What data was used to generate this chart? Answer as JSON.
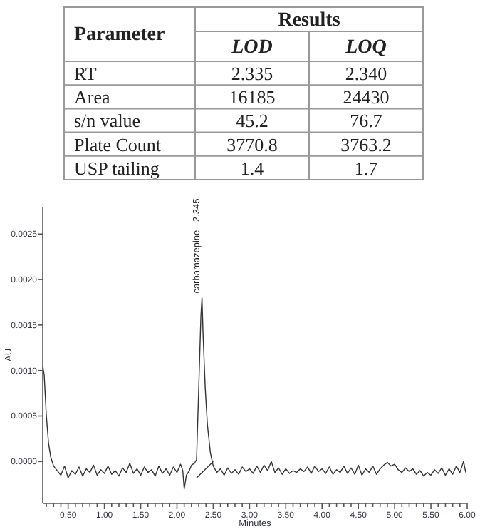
{
  "chart_data": [
    {
      "type": "other",
      "annotations": [
        "Parameter",
        "Results"
      ],
      "categories": [
        "RT",
        "Area",
        "s/n value",
        "Plate Count",
        "USP tailing"
      ],
      "series": [
        {
          "name": "LOD",
          "values": [
            2.335,
            16185,
            45.2,
            3770.8,
            1.4
          ],
          "value_labels": [
            "2.335",
            "16185",
            "45.2",
            "3770.8",
            "1.4"
          ]
        },
        {
          "name": "LOQ",
          "values": [
            2.34,
            24430,
            76.7,
            3763.2,
            1.7
          ],
          "value_labels": [
            "2.340",
            "24430",
            "76.7",
            "3763.2",
            "1.7"
          ]
        }
      ]
    },
    {
      "type": "line",
      "xlabel": "Minutes",
      "ylabel": "AU",
      "xlim": [
        0.15,
        6.0
      ],
      "ylim": [
        -0.00046,
        0.0028
      ],
      "line_style": "solid",
      "xticks": [
        {
          "value": 0.2,
          "label": null
        },
        {
          "value": 0.3,
          "label": null
        },
        {
          "value": 0.4,
          "label": null
        },
        {
          "value": 0.5,
          "label": "0.50"
        },
        {
          "value": 0.6,
          "label": null
        },
        {
          "value": 0.7,
          "label": null
        },
        {
          "value": 0.8,
          "label": null
        },
        {
          "value": 0.9,
          "label": null
        },
        {
          "value": 1.0,
          "label": "1.00"
        },
        {
          "value": 1.1,
          "label": null
        },
        {
          "value": 1.2,
          "label": null
        },
        {
          "value": 1.3,
          "label": null
        },
        {
          "value": 1.4,
          "label": null
        },
        {
          "value": 1.5,
          "label": "1.50"
        },
        {
          "value": 1.6,
          "label": null
        },
        {
          "value": 1.7,
          "label": null
        },
        {
          "value": 1.8,
          "label": null
        },
        {
          "value": 1.9,
          "label": null
        },
        {
          "value": 2.0,
          "label": "2.00"
        },
        {
          "value": 2.1,
          "label": null
        },
        {
          "value": 2.2,
          "label": null
        },
        {
          "value": 2.3,
          "label": null
        },
        {
          "value": 2.4,
          "label": null
        },
        {
          "value": 2.5,
          "label": "2.50"
        },
        {
          "value": 2.6,
          "label": null
        },
        {
          "value": 2.7,
          "label": null
        },
        {
          "value": 2.8,
          "label": null
        },
        {
          "value": 2.9,
          "label": null
        },
        {
          "value": 3.0,
          "label": "3.00"
        },
        {
          "value": 3.1,
          "label": null
        },
        {
          "value": 3.2,
          "label": null
        },
        {
          "value": 3.3,
          "label": null
        },
        {
          "value": 3.4,
          "label": null
        },
        {
          "value": 3.5,
          "label": "3.50"
        },
        {
          "value": 3.6,
          "label": null
        },
        {
          "value": 3.7,
          "label": null
        },
        {
          "value": 3.8,
          "label": null
        },
        {
          "value": 3.9,
          "label": null
        },
        {
          "value": 4.0,
          "label": "4.00"
        },
        {
          "value": 4.1,
          "label": null
        },
        {
          "value": 4.2,
          "label": null
        },
        {
          "value": 4.3,
          "label": null
        },
        {
          "value": 4.4,
          "label": null
        },
        {
          "value": 4.5,
          "label": "4.50"
        },
        {
          "value": 4.6,
          "label": null
        },
        {
          "value": 4.7,
          "label": null
        },
        {
          "value": 4.8,
          "label": null
        },
        {
          "value": 4.9,
          "label": null
        },
        {
          "value": 5.0,
          "label": "5.00"
        },
        {
          "value": 5.1,
          "label": null
        },
        {
          "value": 5.2,
          "label": null
        },
        {
          "value": 5.3,
          "label": null
        },
        {
          "value": 5.4,
          "label": null
        },
        {
          "value": 5.5,
          "label": "5.50"
        },
        {
          "value": 5.6,
          "label": null
        },
        {
          "value": 5.7,
          "label": null
        },
        {
          "value": 5.8,
          "label": null
        },
        {
          "value": 5.9,
          "label": null
        },
        {
          "value": 6.0,
          "label": "6.00"
        }
      ],
      "yticks": [
        {
          "value": 0,
          "label": "0.0000"
        },
        {
          "value": 0.0005,
          "label": "0.0005"
        },
        {
          "value": 0.001,
          "label": "0.0010"
        },
        {
          "value": 0.0015,
          "label": "0.0015"
        },
        {
          "value": 0.002,
          "label": "0.0020"
        },
        {
          "value": 0.0025,
          "label": "0.0025"
        }
      ],
      "annotations": [
        {
          "text": "carbamazepine - 2.345",
          "x": 2.345,
          "y": 0.0018
        }
      ],
      "series": [
        {
          "color": "#333333",
          "x": [
            0.15,
            0.17,
            0.2,
            0.23,
            0.26,
            0.3,
            0.35,
            0.4,
            0.45,
            0.5,
            0.55,
            0.6,
            0.65,
            0.7,
            0.75,
            0.8,
            0.85,
            0.9,
            0.95,
            1.0,
            1.05,
            1.1,
            1.15,
            1.2,
            1.25,
            1.3,
            1.35,
            1.4,
            1.45,
            1.5,
            1.55,
            1.6,
            1.65,
            1.7,
            1.75,
            1.8,
            1.85,
            1.9,
            1.95,
            2.0,
            2.05,
            2.08,
            2.1,
            2.13,
            2.17,
            2.2,
            2.24,
            2.27,
            2.3,
            2.33,
            2.345,
            2.36,
            2.39,
            2.42,
            2.46,
            2.5,
            2.55,
            2.6,
            2.65,
            2.7,
            2.75,
            2.8,
            2.85,
            2.9,
            2.95,
            3.0,
            3.05,
            3.1,
            3.15,
            3.2,
            3.25,
            3.3,
            3.35,
            3.4,
            3.45,
            3.5,
            3.55,
            3.6,
            3.65,
            3.7,
            3.75,
            3.8,
            3.85,
            3.9,
            3.95,
            4.0,
            4.05,
            4.1,
            4.15,
            4.2,
            4.25,
            4.3,
            4.35,
            4.4,
            4.45,
            4.5,
            4.55,
            4.6,
            4.65,
            4.7,
            4.75,
            4.8,
            4.85,
            4.9,
            4.95,
            5.0,
            5.05,
            5.1,
            5.15,
            5.2,
            5.25,
            5.3,
            5.35,
            5.4,
            5.45,
            5.5,
            5.55,
            5.6,
            5.65,
            5.7,
            5.75,
            5.8,
            5.85,
            5.9,
            5.95,
            5.98
          ],
          "values": [
            0.00105,
            0.00095,
            0.0005,
            0.0002,
            5e-05,
            -5e-05,
            -0.0001,
            -0.00015,
            -5e-05,
            -0.00018,
            -0.0001,
            -0.00014,
            -6e-05,
            -0.00016,
            -8e-05,
            -0.00012,
            -4e-05,
            -0.00015,
            -9e-05,
            -0.00013,
            -5e-05,
            -0.00014,
            -0.0001,
            -0.00016,
            -7e-05,
            -0.00012,
            -2e-05,
            -0.00013,
            -8e-05,
            -0.00015,
            -6e-05,
            -0.00012,
            -9e-05,
            -0.00016,
            -5e-05,
            -0.00013,
            -8e-05,
            -0.00015,
            -6e-05,
            -0.00012,
            -3e-05,
            -0.0001,
            -0.0003,
            -0.00015,
            -0.0001,
            -4e-05,
            -2e-05,
            2e-05,
            0.0008,
            0.0016,
            0.0018,
            0.0014,
            0.0008,
            0.0004,
            0.0001,
            -5e-05,
            -0.00012,
            -8e-05,
            -0.00015,
            -7e-05,
            -0.00013,
            -9e-05,
            -0.00014,
            -6e-05,
            -0.00011,
            -8e-05,
            -0.00013,
            -5e-05,
            -0.00012,
            -4e-05,
            -0.0001,
            0.0,
            -0.00012,
            -7e-05,
            -0.00014,
            -8e-05,
            -0.00013,
            -0.0001,
            -0.00012,
            -8e-05,
            -0.00011,
            -6e-05,
            -0.00013,
            -5e-05,
            -0.00011,
            -8e-05,
            -0.00013,
            -6e-05,
            -0.00014,
            -9e-05,
            -0.00012,
            -5e-05,
            -0.00013,
            -7e-05,
            -0.00014,
            -4e-05,
            -0.00015,
            -8e-05,
            -0.00012,
            -5e-05,
            -0.00014,
            -8e-05,
            -4e-05,
            -1e-05,
            -5e-05,
            -3e-05,
            -9e-05,
            -0.00012,
            -7e-05,
            -0.00011,
            -8e-05,
            -0.00014,
            -0.0001,
            -0.00016,
            -0.00012,
            -0.00015,
            -9e-05,
            -0.00013,
            -7e-05,
            -0.00015,
            -8e-05,
            -0.00014,
            -5e-05,
            -0.00012,
            0.0,
            -0.00012
          ]
        },
        {
          "color": "#333333",
          "x": [
            2.27,
            2.5
          ],
          "values": [
            -0.00018,
            0.0
          ]
        }
      ]
    }
  ]
}
